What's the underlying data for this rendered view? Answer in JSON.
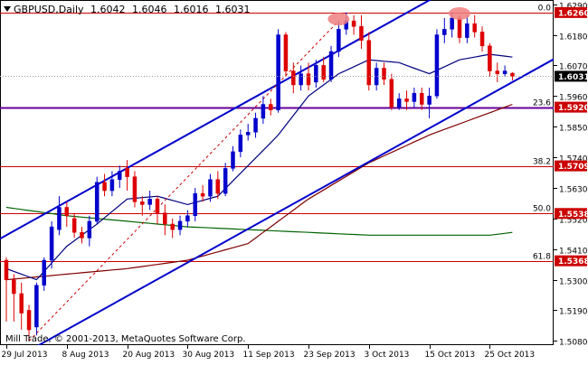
{
  "header": {
    "symbol": "GBPUSD,Daily",
    "open": "1.6042",
    "high": "1.6046",
    "low": "1.6016",
    "close": "1.6031"
  },
  "copyright": "Mill Trade, © 2001-2013, MetaQuotes Software Corp.",
  "colors": {
    "background": "#ffffff",
    "axis": "#000000",
    "bull_candle": "#0000cc",
    "bear_candle": "#dd0000",
    "channel": "#0000cc",
    "fib_level": "#cc0000",
    "fib_23_6": "#660099",
    "ma_short": "#000080",
    "ma_mid": "#800000",
    "ma_long": "#006400",
    "marker": "#f08080",
    "price_box": "#cc0000"
  },
  "chart_data": {
    "type": "candlestick",
    "ylim": [
      1.5065,
      1.6305
    ],
    "y_ticks": [
      "1.6290",
      "1.6180",
      "1.6070",
      "1.5960",
      "1.5850",
      "1.5740",
      "1.5630",
      "1.5520",
      "1.5410",
      "1.5300",
      "1.5190",
      "1.5080"
    ],
    "y_tick_values": [
      1.629,
      1.618,
      1.607,
      1.596,
      1.585,
      1.574,
      1.563,
      1.552,
      1.541,
      1.53,
      1.519,
      1.508
    ],
    "x_ticks": [
      "29 Jul 2013",
      "8 Aug 2013",
      "20 Aug 2013",
      "30 Aug 2013",
      "11 Sep 2013",
      "23 Sep 2013",
      "3 Oct 2013",
      "15 Oct 2013",
      "25 Oct 2013"
    ],
    "x_tick_index": [
      0,
      8,
      16,
      24,
      32,
      40,
      48,
      56,
      64
    ],
    "current_price": "1.6031",
    "current_price_value": 1.6031,
    "fib_levels": [
      {
        "label": "0.0",
        "price": "1.6260",
        "value": 1.626
      },
      {
        "label": "23.6",
        "price": "1.5920",
        "value": 1.592
      },
      {
        "label": "38.2",
        "price": "1.5709",
        "value": 1.5709
      },
      {
        "label": "50.0",
        "price": "1.5538",
        "value": 1.5538
      },
      {
        "label": "61.8",
        "price": "1.5368",
        "value": 1.5368
      }
    ],
    "candles": [
      [
        1.537,
        1.53,
        1.538,
        1.515
      ],
      [
        1.53,
        1.525,
        1.532,
        1.515
      ],
      [
        1.525,
        1.518,
        1.529,
        1.512
      ],
      [
        1.519,
        1.512,
        1.521,
        1.508
      ],
      [
        1.513,
        1.528,
        1.529,
        1.51
      ],
      [
        1.528,
        1.537,
        1.538,
        1.526
      ],
      [
        1.537,
        1.549,
        1.551,
        1.534
      ],
      [
        1.548,
        1.556,
        1.56,
        1.546
      ],
      [
        1.556,
        1.553,
        1.558,
        1.549
      ],
      [
        1.552,
        1.547,
        1.554,
        1.545
      ],
      [
        1.547,
        1.545,
        1.549,
        1.543
      ],
      [
        1.545,
        1.551,
        1.553,
        1.542
      ],
      [
        1.551,
        1.565,
        1.567,
        1.55
      ],
      [
        1.565,
        1.562,
        1.568,
        1.56
      ],
      [
        1.562,
        1.566,
        1.569,
        1.56
      ],
      [
        1.566,
        1.569,
        1.571,
        1.563
      ],
      [
        1.57,
        1.567,
        1.573,
        1.562
      ],
      [
        1.567,
        1.558,
        1.569,
        1.556
      ],
      [
        1.558,
        1.557,
        1.56,
        1.553
      ],
      [
        1.557,
        1.559,
        1.562,
        1.555
      ],
      [
        1.559,
        1.554,
        1.56,
        1.55
      ],
      [
        1.554,
        1.55,
        1.557,
        1.546
      ],
      [
        1.55,
        1.548,
        1.552,
        1.545
      ],
      [
        1.548,
        1.551,
        1.553,
        1.546
      ],
      [
        1.551,
        1.553,
        1.555,
        1.549
      ],
      [
        1.553,
        1.561,
        1.563,
        1.551
      ],
      [
        1.561,
        1.56,
        1.564,
        1.558
      ],
      [
        1.56,
        1.566,
        1.568,
        1.558
      ],
      [
        1.566,
        1.561,
        1.569,
        1.559
      ],
      [
        1.561,
        1.57,
        1.572,
        1.56
      ],
      [
        1.57,
        1.576,
        1.578,
        1.569
      ],
      [
        1.576,
        1.582,
        1.584,
        1.574
      ],
      [
        1.582,
        1.583,
        1.586,
        1.58
      ],
      [
        1.583,
        1.588,
        1.59,
        1.581
      ],
      [
        1.588,
        1.593,
        1.596,
        1.586
      ],
      [
        1.593,
        1.591,
        1.595,
        1.589
      ],
      [
        1.591,
        1.618,
        1.62,
        1.59
      ],
      [
        1.618,
        1.605,
        1.619,
        1.603
      ],
      [
        1.605,
        1.6,
        1.608,
        1.597
      ],
      [
        1.6,
        1.604,
        1.607,
        1.598
      ],
      [
        1.604,
        1.6,
        1.608,
        1.598
      ],
      [
        1.601,
        1.607,
        1.609,
        1.599
      ],
      [
        1.607,
        1.602,
        1.61,
        1.601
      ],
      [
        1.602,
        1.612,
        1.614,
        1.601
      ],
      [
        1.612,
        1.62,
        1.623,
        1.61
      ],
      [
        1.62,
        1.623,
        1.626,
        1.618
      ],
      [
        1.623,
        1.621,
        1.625,
        1.618
      ],
      [
        1.621,
        1.616,
        1.625,
        1.613
      ],
      [
        1.616,
        1.6,
        1.619,
        1.598
      ],
      [
        1.6,
        1.606,
        1.608,
        1.598
      ],
      [
        1.606,
        1.602,
        1.608,
        1.6
      ],
      [
        1.602,
        1.592,
        1.604,
        1.591
      ],
      [
        1.592,
        1.595,
        1.597,
        1.591
      ],
      [
        1.595,
        1.594,
        1.598,
        1.591
      ],
      [
        1.594,
        1.597,
        1.599,
        1.592
      ],
      [
        1.597,
        1.593,
        1.599,
        1.591
      ],
      [
        1.593,
        1.596,
        1.599,
        1.588
      ],
      [
        1.596,
        1.618,
        1.62,
        1.595
      ],
      [
        1.618,
        1.62,
        1.624,
        1.615
      ],
      [
        1.62,
        1.624,
        1.626,
        1.617
      ],
      [
        1.624,
        1.617,
        1.625,
        1.615
      ],
      [
        1.617,
        1.622,
        1.625,
        1.615
      ],
      [
        1.622,
        1.619,
        1.625,
        1.617
      ],
      [
        1.619,
        1.614,
        1.621,
        1.612
      ],
      [
        1.614,
        1.605,
        1.615,
        1.603
      ],
      [
        1.605,
        1.604,
        1.608,
        1.601
      ],
      [
        1.604,
        1.605,
        1.607,
        1.603
      ],
      [
        1.6042,
        1.6031,
        1.6046,
        1.6016
      ]
    ],
    "channel": {
      "lower": [
        [
          0,
          1.5
        ],
        [
          67,
          1.601
        ]
      ],
      "upper": [
        [
          0,
          1.546
        ],
        [
          67,
          1.647
        ]
      ]
    },
    "tops": [
      44,
      60
    ],
    "ma_short_anchor": [
      [
        0,
        1.534
      ],
      [
        4,
        1.53
      ],
      [
        8,
        1.542
      ],
      [
        12,
        1.55
      ],
      [
        16,
        1.559
      ],
      [
        20,
        1.56
      ],
      [
        24,
        1.557
      ],
      [
        28,
        1.56
      ],
      [
        32,
        1.571
      ],
      [
        36,
        1.582
      ],
      [
        40,
        1.596
      ],
      [
        44,
        1.604
      ],
      [
        48,
        1.609
      ],
      [
        52,
        1.608
      ],
      [
        56,
        1.604
      ],
      [
        60,
        1.609
      ],
      [
        64,
        1.611
      ],
      [
        67,
        1.61
      ]
    ],
    "ma_mid_anchor": [
      [
        0,
        1.53
      ],
      [
        8,
        1.532
      ],
      [
        16,
        1.534
      ],
      [
        24,
        1.537
      ],
      [
        32,
        1.543
      ],
      [
        40,
        1.559
      ],
      [
        48,
        1.572
      ],
      [
        56,
        1.582
      ],
      [
        64,
        1.59
      ],
      [
        67,
        1.593
      ]
    ],
    "ma_long_anchor": [
      [
        0,
        1.556
      ],
      [
        8,
        1.553
      ],
      [
        16,
        1.551
      ],
      [
        24,
        1.549
      ],
      [
        32,
        1.548
      ],
      [
        40,
        1.547
      ],
      [
        48,
        1.546
      ],
      [
        56,
        1.546
      ],
      [
        64,
        1.546
      ],
      [
        67,
        1.547
      ]
    ]
  }
}
